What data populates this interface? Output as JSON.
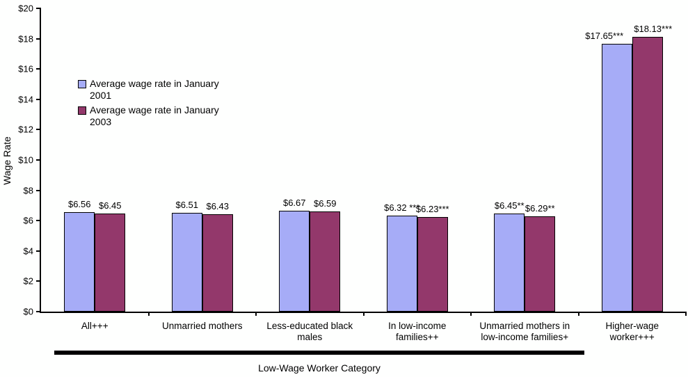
{
  "chart_data": {
    "type": "bar",
    "title": "",
    "categories": [
      "All+++",
      "Unmarried mothers",
      "Less-educated black\nmales",
      "In low-income\nfamilies++",
      "Unmarried mothers in\nlow-income families+",
      "Higher-wage\nworker+++"
    ],
    "series": [
      {
        "name": "Average wage rate in January 2001",
        "color": "#A6ACF7",
        "values": [
          6.56,
          6.51,
          6.67,
          6.32,
          6.45,
          17.65
        ],
        "value_labels": [
          "$6.56",
          "$6.51",
          "$6.67",
          "$6.32 ***",
          "$6.45**",
          "$17.65***"
        ]
      },
      {
        "name": "Average wage rate in January 2003",
        "color": "#93386B",
        "values": [
          6.45,
          6.43,
          6.59,
          6.23,
          6.29,
          18.13
        ],
        "value_labels": [
          "$6.45",
          "$6.43",
          "$6.59",
          "$6.23***",
          "$6.29**",
          "$18.13***"
        ]
      }
    ],
    "xlabel": "Low-Wage Worker Category",
    "ylabel": "Wage Rate",
    "ylim": [
      0,
      20
    ],
    "ytick_step": 2,
    "ytick_labels": [
      "$0",
      "$2",
      "$4",
      "$6",
      "$8",
      "$10",
      "$12",
      "$14",
      "$16",
      "$18",
      "$20"
    ],
    "grid": false,
    "legend_position": "inside-upper-left",
    "bracket_note": "thick underline spans the five low-wage categories only",
    "axis_color": "#000000"
  }
}
